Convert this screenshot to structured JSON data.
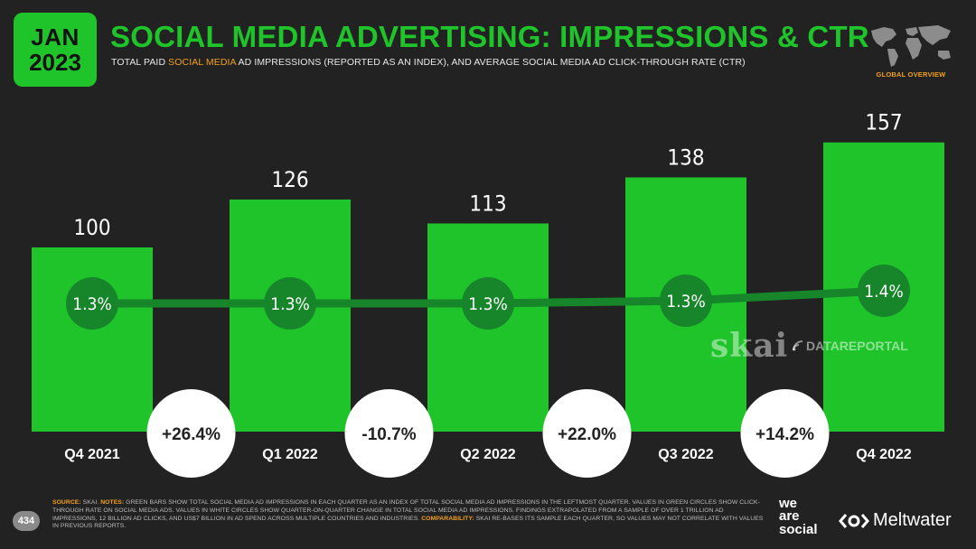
{
  "header": {
    "month": "JAN",
    "year": "2023",
    "title": "SOCIAL MEDIA ADVERTISING: IMPRESSIONS & CTR",
    "subtitle_pre": "TOTAL PAID ",
    "subtitle_highlight": "SOCIAL MEDIA",
    "subtitle_post": " AD IMPRESSIONS (REPORTED AS AN INDEX), AND AVERAGE SOCIAL MEDIA AD CLICK-THROUGH RATE (CTR)",
    "region_label": "GLOBAL OVERVIEW"
  },
  "colors": {
    "background": "#222222",
    "accent_green": "#1fc42a",
    "dark_green": "#17852a",
    "orange": "#f2a01d"
  },
  "chart_data": {
    "type": "bar",
    "categories": [
      "Q4 2021",
      "Q1 2022",
      "Q2 2022",
      "Q3 2022",
      "Q4 2022"
    ],
    "values": [
      100,
      126,
      113,
      138,
      157
    ],
    "value_labels": [
      "100",
      "126",
      "113",
      "138",
      "157"
    ],
    "ctr_values": [
      1.3,
      1.3,
      1.3,
      1.3,
      1.4
    ],
    "ctr_labels": [
      "1.3%",
      "1.3%",
      "1.3%",
      "1.3%",
      "1.4%"
    ],
    "qoq_changes": [
      26.4,
      -10.7,
      22.0,
      14.2
    ],
    "qoq_labels": [
      "+26.4%",
      "-10.7%",
      "+22.0%",
      "+14.2%"
    ],
    "ylim": [
      0,
      175
    ]
  },
  "watermarks": {
    "skai": "skai",
    "datareportal": "DATAREPORTAL"
  },
  "footer": {
    "page_number": "434",
    "source_label": "SOURCE:",
    "source_text": " SKAI. ",
    "notes_label": "NOTES:",
    "notes_text": " GREEN BARS SHOW TOTAL SOCIAL MEDIA AD IMPRESSIONS IN EACH QUARTER AS AN INDEX OF TOTAL SOCIAL MEDIA AD IMPRESSIONS IN THE LEFTMOST QUARTER. VALUES IN GREEN CIRCLES SHOW CLICK-THROUGH RATE ON SOCIAL MEDIA ADS. VALUES IN WHITE CIRCLES SHOW QUARTER-ON-QUARTER CHANGE IN TOTAL SOCIAL MEDIA AD IMPRESSIONS. FINDINGS EXTRAPOLATED FROM A SAMPLE OF OVER 1 TRILLION AD IMPRESSIONS, 12 BILLION AD CLICKS, AND US$7 BILLION IN AD SPEND ACROSS MULTIPLE COUNTRIES AND INDUSTRIES. ",
    "comparability_label": "COMPARABILITY:",
    "comparability_text": " SKAI RE-BASES ITS SAMPLE EACH QUARTER, SO VALUES MAY NOT CORRELATE WITH VALUES IN PREVIOUS REPORTS.",
    "brand_was_1": "we",
    "brand_was_2": "are",
    "brand_was_3": "social",
    "brand_mw": "Meltwater"
  }
}
